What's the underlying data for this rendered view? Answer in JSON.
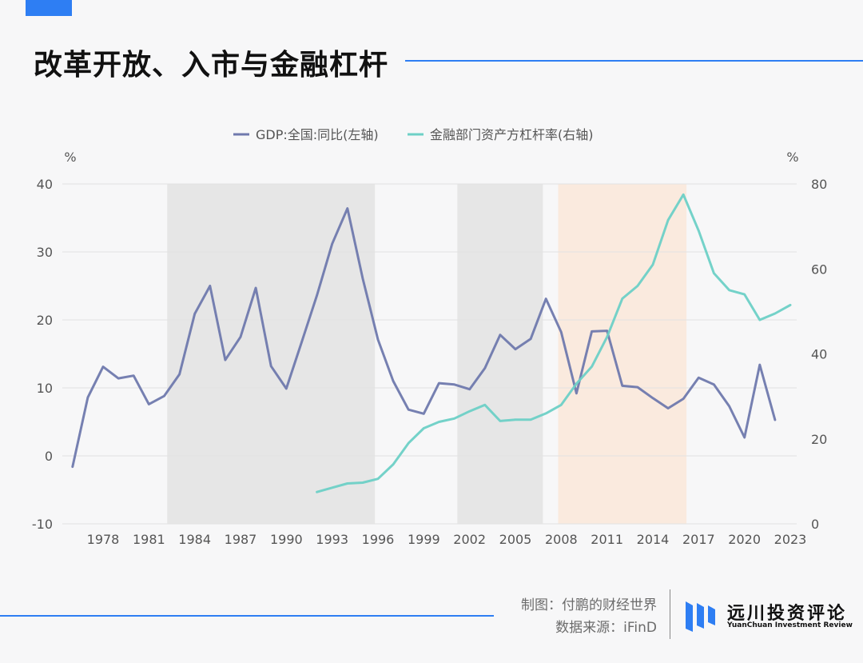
{
  "header": {
    "title": "改革开放、入市与金融杠杆",
    "accent_color": "#2e7ef3"
  },
  "footer": {
    "credit_line1": "制图：付鹏的财经世界",
    "credit_line2": "数据来源：iFinD",
    "logo_name": "远川投资评论",
    "logo_subtitle": "YuanChuan Investment Review",
    "logo_color": "#2e7ef3"
  },
  "chart_data": {
    "type": "line",
    "left_unit": "%",
    "right_unit": "%",
    "x_tick_labels": [
      "1978",
      "1981",
      "1984",
      "1987",
      "1990",
      "1993",
      "1996",
      "1999",
      "2002",
      "2005",
      "2008",
      "2011",
      "2014",
      "2017",
      "2020",
      "2023"
    ],
    "left_axis": {
      "ylim": [
        -10,
        40
      ],
      "ticks": [
        40,
        30,
        20,
        10,
        0,
        -10
      ]
    },
    "right_axis": {
      "ylim": [
        0,
        80
      ],
      "ticks": [
        80,
        60,
        40,
        20,
        0
      ]
    },
    "shaded_periods": [
      {
        "start": 1982.2,
        "end": 1995.8,
        "color": "#e6e6e6"
      },
      {
        "start": 2001.2,
        "end": 2006.8,
        "color": "#e6e6e6"
      },
      {
        "start": 2007.8,
        "end": 2016.2,
        "color": "#faeade"
      }
    ],
    "series": [
      {
        "name": "GDP:全国:同比(左轴)",
        "axis": "left",
        "color": "#6f79ad",
        "x": [
          1976,
          1977,
          1978,
          1979,
          1980,
          1981,
          1982,
          1983,
          1984,
          1985,
          1986,
          1987,
          1988,
          1989,
          1990,
          1991,
          1992,
          1993,
          1994,
          1995,
          1996,
          1997,
          1998,
          1999,
          2000,
          2001,
          2002,
          2003,
          2004,
          2005,
          2006,
          2007,
          2008,
          2009,
          2010,
          2011,
          2012,
          2013,
          2014,
          2015,
          2016,
          2017,
          2018,
          2019,
          2020,
          2021,
          2022
        ],
        "values": [
          -1.6,
          8.6,
          13.1,
          11.4,
          11.8,
          7.6,
          8.8,
          12.0,
          20.9,
          25.0,
          14.1,
          17.5,
          24.7,
          13.2,
          9.9,
          16.7,
          23.6,
          31.2,
          36.4,
          26.1,
          17.1,
          11.0,
          6.8,
          6.2,
          10.7,
          10.5,
          9.8,
          12.9,
          17.8,
          15.7,
          17.2,
          23.1,
          18.2,
          9.2,
          18.3,
          18.4,
          10.3,
          10.1,
          8.5,
          7.0,
          8.4,
          11.5,
          10.5,
          7.3,
          2.7,
          13.4,
          5.3
        ]
      },
      {
        "name": "金融部门资产方杠杆率(右轴)",
        "axis": "right",
        "color": "#6dd0c6",
        "x": [
          1992,
          1993,
          1994,
          1995,
          1996,
          1997,
          1998,
          1999,
          2000,
          2001,
          2002,
          2003,
          2004,
          2005,
          2006,
          2007,
          2008,
          2009,
          2010,
          2011,
          2012,
          2013,
          2014,
          2015,
          2016,
          2017,
          2018,
          2019,
          2020,
          2021,
          2022,
          2023
        ],
        "values": [
          7.5,
          8.5,
          9.5,
          9.7,
          10.6,
          14.0,
          19.0,
          22.5,
          24.0,
          24.8,
          26.5,
          28.0,
          24.2,
          24.5,
          24.5,
          26.0,
          28.0,
          33.0,
          37.0,
          44.0,
          53.0,
          56.0,
          61.0,
          71.5,
          77.5,
          69.0,
          59.0,
          55.0,
          54.0,
          48.0,
          49.5,
          51.5
        ]
      }
    ],
    "grid": true,
    "legend_position": "top-center"
  }
}
